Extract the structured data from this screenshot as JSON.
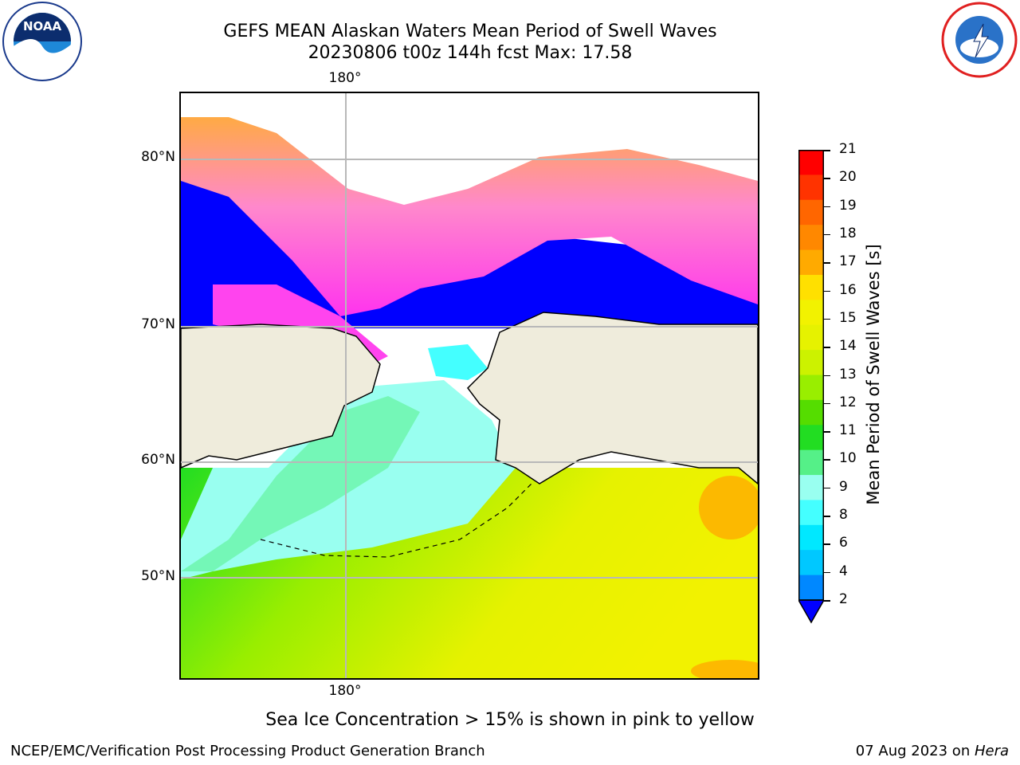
{
  "header": {
    "title_line1": "GEFS MEAN Alaskan Waters Mean Period of Swell Waves",
    "title_line2": "20230806 t00z 144h fcst   Max: 17.58"
  },
  "logos": {
    "left": "NOAA",
    "right": "NATIONAL WEATHER SERVICE"
  },
  "map": {
    "lat_labels": [
      "80°N",
      "70°N",
      "60°N",
      "50°N"
    ],
    "lon_label_top": "180°",
    "lon_label_bottom": "180°"
  },
  "colorbar": {
    "label": "Mean Period of Swell Waves [s]",
    "ticks": [
      "21",
      "20",
      "19",
      "18",
      "17",
      "16",
      "15",
      "14",
      "13",
      "12",
      "11",
      "10",
      "9",
      "8",
      "6",
      "4",
      "2"
    ],
    "colors": [
      "#ff0000",
      "#ff3300",
      "#ff6600",
      "#ff8800",
      "#ffaa00",
      "#ffe000",
      "#f2f200",
      "#e6f200",
      "#ccf200",
      "#99ee00",
      "#55dd00",
      "#22dd22",
      "#55f088",
      "#99fff0",
      "#44ffff",
      "#00e8ff",
      "#00c8ff",
      "#0088ff",
      "#0000ff"
    ]
  },
  "footnote": "Sea Ice Concentration > 15% is shown in pink to yellow",
  "credits": {
    "left": "NCEP/EMC/Verification Post Processing Product Generation Branch",
    "right_date": "07 Aug 2023 on ",
    "right_host": "Hera"
  }
}
